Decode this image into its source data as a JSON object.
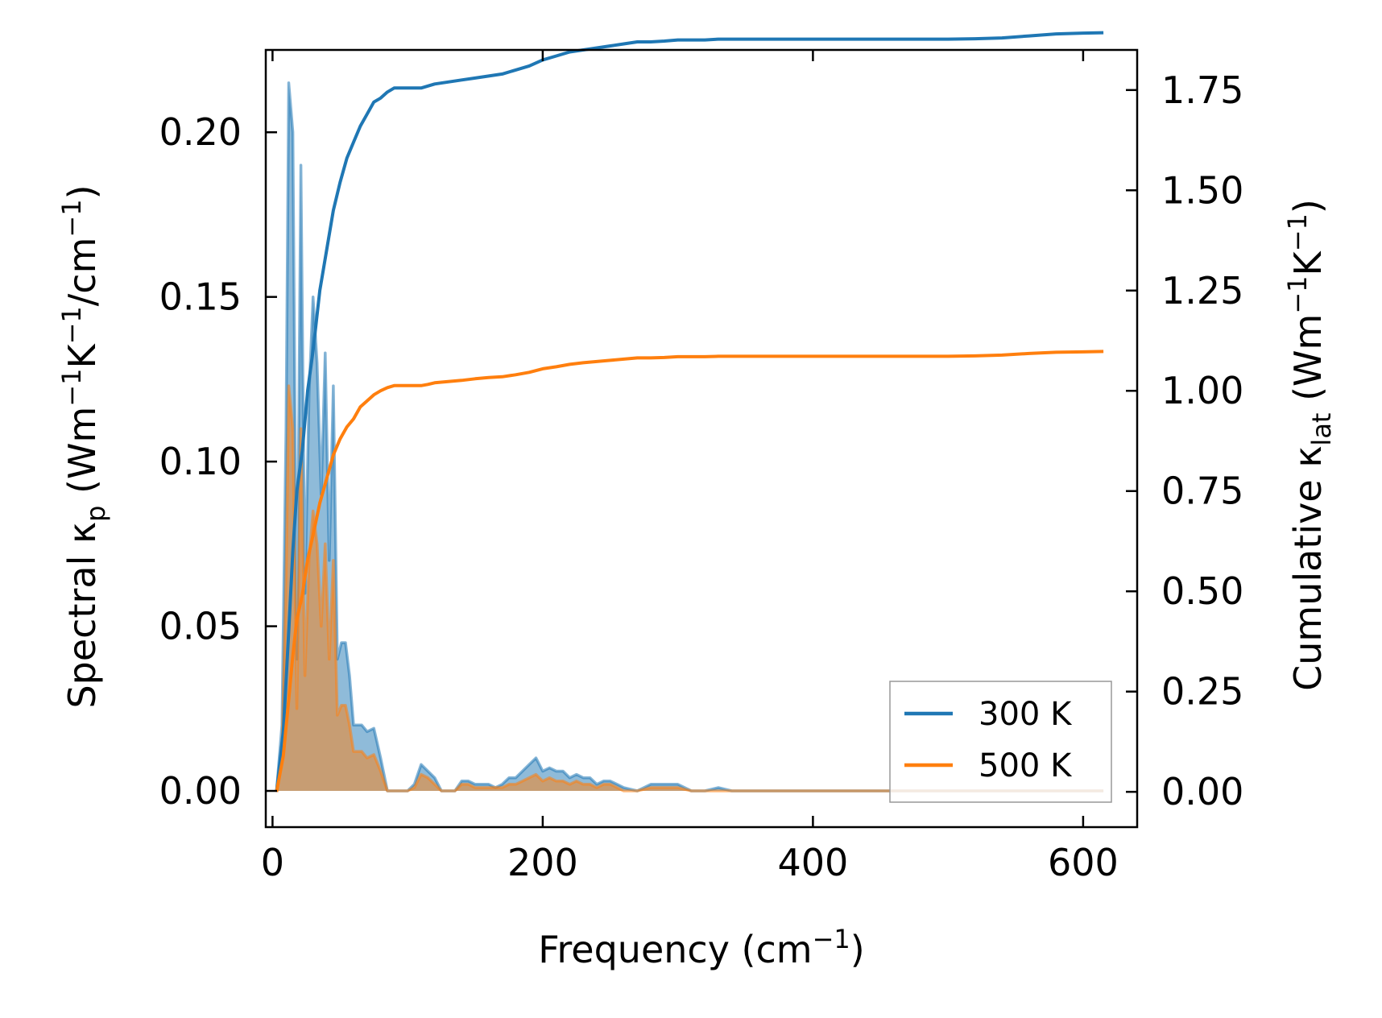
{
  "chart_data": {
    "type": "line",
    "xlabel": {
      "text": "Frequency (cm",
      "sup": "−1",
      "tail": ")"
    },
    "ylabel_left": {
      "pre": "Spectral κ",
      "sub": "p",
      "mid1": " (Wm",
      "sup1": "−1",
      "mid2": "K",
      "sup2": "−1",
      "mid3": "/cm",
      "sup3": "−1",
      "tail": ")"
    },
    "ylabel_right": {
      "pre": "Cumulative κ",
      "sub": "lat",
      "mid1": " (Wm",
      "sup1": "−1",
      "mid2": "K",
      "sup2": "−1",
      "tail": ")"
    },
    "xlim": [
      -5,
      640
    ],
    "ylim_left": [
      -0.011,
      0.225
    ],
    "ylim_right": [
      -0.088,
      1.85
    ],
    "x_ticks": [
      0,
      200,
      400,
      600
    ],
    "x_tick_labels": [
      "0",
      "200",
      "400",
      "600"
    ],
    "y_left_ticks": [
      0.0,
      0.05,
      0.1,
      0.15,
      0.2
    ],
    "y_left_tick_labels": [
      "0.00",
      "0.05",
      "0.10",
      "0.15",
      "0.20"
    ],
    "y_right_ticks": [
      0.0,
      0.25,
      0.5,
      0.75,
      1.0,
      1.25,
      1.5,
      1.75
    ],
    "y_right_tick_labels": [
      "0.00",
      "0.25",
      "0.50",
      "0.75",
      "1.00",
      "1.25",
      "1.50",
      "1.75"
    ],
    "legend_position": "lower-right",
    "series": [
      {
        "name": "300 K",
        "color": "#1f77b4",
        "spectral": {
          "x": [
            3,
            7,
            10,
            12,
            15,
            18,
            21,
            24,
            27,
            30,
            33,
            36,
            39,
            42,
            45,
            48,
            51,
            54,
            57,
            60,
            63,
            66,
            70,
            75,
            80,
            85,
            90,
            95,
            100,
            105,
            110,
            115,
            120,
            125,
            130,
            135,
            140,
            145,
            150,
            155,
            160,
            165,
            170,
            175,
            180,
            185,
            190,
            195,
            200,
            205,
            210,
            215,
            220,
            225,
            230,
            235,
            240,
            245,
            250,
            255,
            260,
            270,
            280,
            290,
            300,
            310,
            320,
            330,
            340,
            350,
            360,
            380,
            400,
            450,
            500,
            540,
            560,
            580,
            600,
            615
          ],
          "y": [
            0,
            0.02,
            0.11,
            0.215,
            0.2,
            0.04,
            0.19,
            0.06,
            0.12,
            0.15,
            0.13,
            0.09,
            0.133,
            0.07,
            0.123,
            0.04,
            0.045,
            0.045,
            0.035,
            0.02,
            0.02,
            0.02,
            0.018,
            0.019,
            0.01,
            0.0,
            0.0,
            0.0,
            0.0,
            0.002,
            0.008,
            0.006,
            0.004,
            0.0,
            0.0,
            0.0,
            0.003,
            0.003,
            0.002,
            0.002,
            0.002,
            0.001,
            0.002,
            0.004,
            0.004,
            0.006,
            0.008,
            0.01,
            0.006,
            0.007,
            0.006,
            0.006,
            0.004,
            0.005,
            0.004,
            0.004,
            0.002,
            0.003,
            0.003,
            0.002,
            0.001,
            0.0,
            0.002,
            0.002,
            0.002,
            0.0,
            0.0,
            0.001,
            0.0,
            0.0,
            0.0,
            0.0,
            0.0,
            0.0,
            0.0,
            0.0,
            0.0,
            0.0,
            0.0,
            0.0
          ]
        },
        "cumulative": {
          "x": [
            3,
            8,
            12,
            15,
            18,
            22,
            26,
            30,
            35,
            40,
            45,
            50,
            55,
            60,
            65,
            70,
            75,
            80,
            85,
            90,
            95,
            100,
            105,
            110,
            115,
            120,
            130,
            140,
            150,
            160,
            170,
            180,
            190,
            200,
            210,
            220,
            230,
            240,
            250,
            260,
            270,
            280,
            290,
            300,
            310,
            320,
            330,
            340,
            350,
            400,
            450,
            500,
            520,
            540,
            560,
            580,
            600,
            615
          ],
          "y": [
            0.0,
            0.15,
            0.4,
            0.6,
            0.75,
            0.85,
            1.0,
            1.1,
            1.25,
            1.35,
            1.45,
            1.52,
            1.58,
            1.62,
            1.66,
            1.69,
            1.72,
            1.73,
            1.745,
            1.755,
            1.755,
            1.755,
            1.755,
            1.755,
            1.76,
            1.765,
            1.77,
            1.775,
            1.78,
            1.785,
            1.79,
            1.8,
            1.81,
            1.825,
            1.835,
            1.845,
            1.85,
            1.855,
            1.86,
            1.865,
            1.87,
            1.87,
            1.872,
            1.875,
            1.875,
            1.875,
            1.877,
            1.877,
            1.877,
            1.877,
            1.877,
            1.877,
            1.878,
            1.88,
            1.885,
            1.89,
            1.892,
            1.893
          ]
        }
      },
      {
        "name": "500 K",
        "color": "#ff7f0e",
        "spectral": {
          "x": [
            3,
            7,
            10,
            12,
            15,
            18,
            21,
            24,
            27,
            30,
            33,
            36,
            39,
            42,
            45,
            48,
            51,
            54,
            57,
            60,
            63,
            66,
            70,
            75,
            80,
            85,
            90,
            95,
            100,
            105,
            110,
            115,
            120,
            125,
            130,
            135,
            140,
            145,
            150,
            155,
            160,
            165,
            170,
            175,
            180,
            185,
            190,
            195,
            200,
            205,
            210,
            215,
            220,
            225,
            230,
            235,
            240,
            245,
            250,
            255,
            260,
            270,
            280,
            290,
            300,
            310,
            320,
            330,
            340,
            350,
            360,
            380,
            400,
            450,
            500,
            540,
            560,
            580,
            600,
            615
          ],
          "y": [
            0,
            0.012,
            0.065,
            0.123,
            0.11,
            0.025,
            0.11,
            0.035,
            0.07,
            0.085,
            0.075,
            0.05,
            0.075,
            0.04,
            0.07,
            0.023,
            0.026,
            0.026,
            0.02,
            0.012,
            0.012,
            0.012,
            0.01,
            0.011,
            0.006,
            0.0,
            0.0,
            0.0,
            0.0,
            0.001,
            0.005,
            0.004,
            0.002,
            0.0,
            0.0,
            0.0,
            0.002,
            0.002,
            0.001,
            0.001,
            0.001,
            0.001,
            0.001,
            0.002,
            0.002,
            0.003,
            0.004,
            0.005,
            0.003,
            0.004,
            0.003,
            0.003,
            0.002,
            0.003,
            0.002,
            0.002,
            0.001,
            0.002,
            0.002,
            0.001,
            0.0,
            0.0,
            0.001,
            0.001,
            0.001,
            0.0,
            0.0,
            0.0,
            0.0,
            0.0,
            0.0,
            0.0,
            0.0,
            0.0,
            0.0,
            0.0,
            0.0,
            0.0,
            0.0,
            0.0
          ]
        },
        "cumulative": {
          "x": [
            3,
            8,
            12,
            15,
            18,
            22,
            26,
            30,
            35,
            40,
            45,
            50,
            55,
            60,
            65,
            70,
            75,
            80,
            85,
            90,
            95,
            100,
            105,
            110,
            115,
            120,
            130,
            140,
            150,
            160,
            170,
            180,
            190,
            200,
            210,
            220,
            230,
            240,
            250,
            260,
            270,
            280,
            290,
            300,
            310,
            320,
            330,
            340,
            350,
            400,
            450,
            500,
            520,
            540,
            560,
            580,
            600,
            615
          ],
          "y": [
            0.0,
            0.09,
            0.23,
            0.34,
            0.43,
            0.49,
            0.58,
            0.64,
            0.72,
            0.78,
            0.84,
            0.88,
            0.91,
            0.93,
            0.96,
            0.975,
            0.99,
            1.0,
            1.008,
            1.013,
            1.013,
            1.013,
            1.013,
            1.013,
            1.016,
            1.02,
            1.023,
            1.026,
            1.03,
            1.033,
            1.035,
            1.04,
            1.046,
            1.055,
            1.06,
            1.066,
            1.07,
            1.073,
            1.076,
            1.079,
            1.082,
            1.082,
            1.083,
            1.085,
            1.085,
            1.085,
            1.086,
            1.086,
            1.086,
            1.086,
            1.086,
            1.086,
            1.087,
            1.089,
            1.093,
            1.096,
            1.097,
            1.098
          ]
        }
      }
    ]
  }
}
